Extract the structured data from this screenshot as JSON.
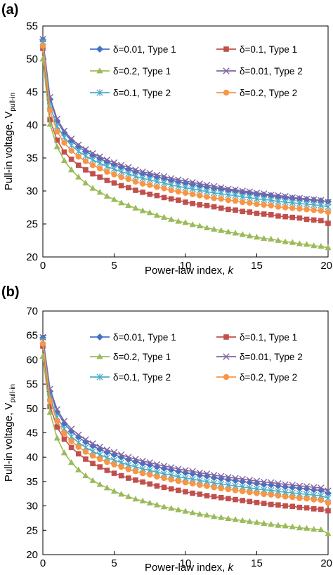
{
  "chart_data": [
    {
      "type": "line",
      "panel_label": "(a)",
      "xlabel": "Power-law index, ",
      "xlabel_italic": "k",
      "ylabel": "Pull-in voltage, V",
      "ylabel_sub": "pull-in",
      "xlim": [
        0,
        20
      ],
      "ylim": [
        20,
        55
      ],
      "xticks": [
        0,
        5,
        10,
        15,
        20
      ],
      "yticks": [
        20,
        25,
        30,
        35,
        40,
        45,
        50,
        55
      ],
      "grid": false,
      "legend_position": "top",
      "x": [
        0,
        0.5,
        1,
        1.5,
        2,
        2.5,
        3,
        3.5,
        4,
        4.5,
        5,
        5.5,
        6,
        6.5,
        7,
        7.5,
        8,
        8.5,
        9,
        9.5,
        10,
        10.5,
        11,
        11.5,
        12,
        12.5,
        13,
        13.5,
        14,
        14.5,
        15,
        15.5,
        16,
        16.5,
        17,
        17.5,
        18,
        18.5,
        19,
        19.5,
        20
      ],
      "series": [
        {
          "name": "δ=0.01, Type 1",
          "color": "#4472C4",
          "marker": "diamond",
          "values": [
            52.9,
            43.9,
            40.6,
            38.8,
            37.6,
            36.7,
            36.0,
            35.4,
            34.9,
            34.4,
            34.0,
            33.6,
            33.3,
            32.9,
            32.6,
            32.4,
            32.1,
            31.9,
            31.6,
            31.4,
            31.2,
            31.0,
            30.8,
            30.6,
            30.4,
            30.3,
            30.1,
            30.0,
            29.8,
            29.7,
            29.5,
            29.4,
            29.3,
            29.1,
            29.0,
            28.9,
            28.8,
            28.7,
            28.6,
            28.5,
            28.4
          ]
        },
        {
          "name": "δ=0.1, Type 1",
          "color": "#C0504D",
          "marker": "square",
          "values": [
            51.6,
            40.8,
            37.7,
            35.9,
            34.8,
            33.9,
            33.2,
            32.6,
            32.1,
            31.6,
            31.2,
            30.8,
            30.5,
            30.1,
            29.8,
            29.5,
            29.3,
            29.0,
            28.8,
            28.6,
            28.3,
            28.1,
            27.9,
            27.8,
            27.6,
            27.4,
            27.2,
            27.1,
            26.9,
            26.8,
            26.6,
            26.5,
            26.4,
            26.2,
            26.1,
            26.0,
            25.9,
            25.7,
            25.6,
            25.5,
            25.1
          ]
        },
        {
          "name": "δ=0.2, Type 1",
          "color": "#9BBB59",
          "marker": "triangle",
          "values": [
            50.0,
            40.1,
            36.7,
            34.6,
            33.2,
            32.1,
            31.2,
            30.4,
            29.8,
            29.2,
            28.7,
            28.2,
            27.8,
            27.4,
            27.0,
            26.7,
            26.3,
            26.0,
            25.7,
            25.4,
            25.2,
            24.9,
            24.7,
            24.4,
            24.2,
            24.0,
            23.8,
            23.6,
            23.4,
            23.2,
            23.0,
            22.8,
            22.7,
            22.5,
            22.3,
            22.2,
            22.0,
            21.9,
            21.7,
            21.6,
            21.4
          ]
        },
        {
          "name": "δ=0.01, Type 2",
          "color": "#8064A2",
          "marker": "x",
          "values": [
            53.0,
            44.2,
            40.9,
            39.1,
            37.9,
            37.0,
            36.3,
            35.7,
            35.2,
            34.7,
            34.3,
            33.9,
            33.6,
            33.2,
            32.9,
            32.7,
            32.4,
            32.2,
            31.9,
            31.7,
            31.5,
            31.3,
            31.1,
            30.9,
            30.7,
            30.5,
            30.3,
            30.2,
            30.0,
            29.9,
            29.7,
            29.6,
            29.4,
            29.3,
            29.2,
            29.0,
            28.9,
            28.8,
            28.7,
            28.6,
            28.3
          ]
        },
        {
          "name": "δ=0.1, Type 2",
          "color": "#4BACC6",
          "marker": "asterisk",
          "values": [
            52.6,
            42.9,
            39.8,
            38.1,
            36.9,
            36.0,
            35.3,
            34.7,
            34.2,
            33.7,
            33.3,
            32.9,
            32.6,
            32.2,
            31.9,
            31.7,
            31.4,
            31.2,
            30.9,
            30.7,
            30.5,
            30.3,
            30.1,
            29.9,
            29.7,
            29.6,
            29.4,
            29.3,
            29.1,
            29.0,
            28.8,
            28.7,
            28.6,
            28.4,
            28.3,
            28.2,
            28.1,
            28.0,
            27.9,
            27.8,
            27.6
          ]
        },
        {
          "name": "δ=0.2, Type 2",
          "color": "#F79646",
          "marker": "circle",
          "values": [
            52.0,
            42.2,
            39.0,
            37.3,
            36.1,
            35.2,
            34.5,
            33.9,
            33.4,
            32.9,
            32.5,
            32.1,
            31.8,
            31.4,
            31.1,
            30.9,
            30.6,
            30.4,
            30.1,
            29.9,
            29.7,
            29.5,
            29.3,
            29.1,
            28.9,
            28.8,
            28.6,
            28.5,
            28.3,
            28.2,
            28.0,
            27.9,
            27.8,
            27.6,
            27.5,
            27.4,
            27.3,
            27.2,
            27.1,
            27.0,
            26.8
          ]
        }
      ]
    },
    {
      "type": "line",
      "panel_label": "(b)",
      "xlabel": "Power-law index, ",
      "xlabel_italic": "k",
      "ylabel": "Pull-in voltage, V",
      "ylabel_sub": "pull-in",
      "xlim": [
        0,
        20
      ],
      "ylim": [
        20,
        70
      ],
      "xticks": [
        0,
        5,
        10,
        15,
        20
      ],
      "yticks": [
        20,
        25,
        30,
        35,
        40,
        45,
        50,
        55,
        60,
        65,
        70
      ],
      "grid": false,
      "legend_position": "top",
      "x": [
        0,
        0.5,
        1,
        1.5,
        2,
        2.5,
        3,
        3.5,
        4,
        4.5,
        5,
        5.5,
        6,
        6.5,
        7,
        7.5,
        8,
        8.5,
        9,
        9.5,
        10,
        10.5,
        11,
        11.5,
        12,
        12.5,
        13,
        13.5,
        14,
        14.5,
        15,
        15.5,
        16,
        16.5,
        17,
        17.5,
        18,
        18.5,
        19,
        19.5,
        20
      ],
      "series": [
        {
          "name": "δ=0.01, Type 1",
          "color": "#4472C4",
          "marker": "diamond",
          "values": [
            64.5,
            53.5,
            49.3,
            46.9,
            45.3,
            44.1,
            43.1,
            42.3,
            41.6,
            41.0,
            40.5,
            40.0,
            39.5,
            39.1,
            38.7,
            38.4,
            38.0,
            37.7,
            37.4,
            37.1,
            36.8,
            36.6,
            36.3,
            36.1,
            35.8,
            35.6,
            35.4,
            35.2,
            35.0,
            34.8,
            34.6,
            34.4,
            34.3,
            34.1,
            33.9,
            33.8,
            33.6,
            33.5,
            33.3,
            33.2,
            32.6
          ]
        },
        {
          "name": "δ=0.1, Type 1",
          "color": "#C0504D",
          "marker": "square",
          "values": [
            62.8,
            50.4,
            46.2,
            43.7,
            42.0,
            40.7,
            39.6,
            38.7,
            38.0,
            37.3,
            36.7,
            36.2,
            35.7,
            35.3,
            34.9,
            34.5,
            34.1,
            33.8,
            33.5,
            33.2,
            32.9,
            32.6,
            32.4,
            32.1,
            31.9,
            31.7,
            31.5,
            31.3,
            31.1,
            30.9,
            30.7,
            30.5,
            30.3,
            30.2,
            30.0,
            29.9,
            29.7,
            29.6,
            29.4,
            29.3,
            29.0
          ]
        },
        {
          "name": "δ=0.2, Type 1",
          "color": "#9BBB59",
          "marker": "triangle",
          "values": [
            60.7,
            49.2,
            43.9,
            40.9,
            38.9,
            37.4,
            36.2,
            35.2,
            34.4,
            33.7,
            33.0,
            32.4,
            31.9,
            31.4,
            31.0,
            30.6,
            30.2,
            29.8,
            29.5,
            29.2,
            28.9,
            28.6,
            28.3,
            28.1,
            27.8,
            27.6,
            27.4,
            27.2,
            27.0,
            26.8,
            26.6,
            26.4,
            26.2,
            26.0,
            25.9,
            25.7,
            25.5,
            25.4,
            25.2,
            25.1,
            24.3
          ]
        },
        {
          "name": "δ=0.01, Type 2",
          "color": "#8064A2",
          "marker": "x",
          "values": [
            64.6,
            54.0,
            49.8,
            47.4,
            45.8,
            44.6,
            43.6,
            42.8,
            42.1,
            41.5,
            41.0,
            40.5,
            40.0,
            39.6,
            39.2,
            38.9,
            38.5,
            38.2,
            37.9,
            37.6,
            37.3,
            37.1,
            36.8,
            36.6,
            36.3,
            36.1,
            35.9,
            35.7,
            35.5,
            35.3,
            35.1,
            34.9,
            34.8,
            34.6,
            34.4,
            34.3,
            34.1,
            34.0,
            33.8,
            33.7,
            33.1
          ]
        },
        {
          "name": "δ=0.1, Type 2",
          "color": "#4BACC6",
          "marker": "asterisk",
          "values": [
            63.9,
            52.4,
            48.2,
            45.8,
            44.2,
            43.0,
            42.0,
            41.2,
            40.5,
            39.9,
            39.4,
            38.9,
            38.4,
            38.0,
            37.6,
            37.3,
            36.9,
            36.6,
            36.3,
            36.0,
            35.7,
            35.5,
            35.2,
            35.0,
            34.7,
            34.5,
            34.3,
            34.1,
            33.9,
            33.7,
            33.5,
            33.3,
            33.2,
            33.0,
            32.8,
            32.7,
            32.5,
            32.4,
            32.2,
            32.1,
            31.6
          ]
        },
        {
          "name": "δ=0.2, Type 2",
          "color": "#F79646",
          "marker": "circle",
          "values": [
            63.3,
            51.6,
            47.4,
            44.9,
            43.3,
            42.1,
            41.1,
            40.3,
            39.6,
            39.0,
            38.5,
            38.0,
            37.5,
            37.1,
            36.7,
            36.4,
            36.0,
            35.7,
            35.4,
            35.1,
            34.8,
            34.6,
            34.3,
            34.1,
            33.8,
            33.6,
            33.4,
            33.2,
            33.0,
            32.8,
            32.6,
            32.4,
            32.3,
            32.1,
            31.9,
            31.8,
            31.6,
            31.5,
            31.3,
            31.2,
            30.6
          ]
        }
      ]
    }
  ]
}
